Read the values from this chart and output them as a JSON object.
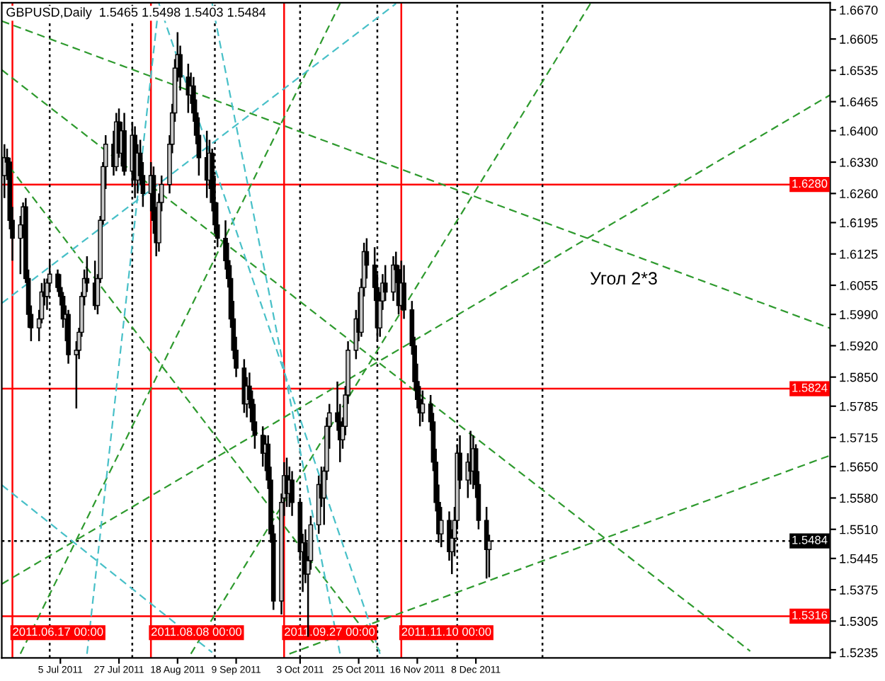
{
  "chart_data": {
    "type": "candlestick",
    "title": "GBPUSD,Daily  1.5465 1.5498 1.5403 1.5484",
    "color": "#000000",
    "x": [
      "2011-06-14",
      "2011-06-15",
      "2011-06-16",
      "2011-06-17",
      "2011-06-20",
      "2011-06-21",
      "2011-06-22",
      "2011-06-23",
      "2011-06-24",
      "2011-06-27",
      "2011-06-28",
      "2011-06-29",
      "2011-06-30",
      "2011-07-01",
      "2011-07-04",
      "2011-07-05",
      "2011-07-06",
      "2011-07-07",
      "2011-07-08",
      "2011-07-11",
      "2011-07-12",
      "2011-07-13",
      "2011-07-14",
      "2011-07-15",
      "2011-07-18",
      "2011-07-19",
      "2011-07-20",
      "2011-07-21",
      "2011-07-22",
      "2011-07-25",
      "2011-07-26",
      "2011-07-27",
      "2011-07-28",
      "2011-07-29",
      "2011-08-01",
      "2011-08-02",
      "2011-08-03",
      "2011-08-04",
      "2011-08-05",
      "2011-08-08",
      "2011-08-09",
      "2011-08-10",
      "2011-08-11",
      "2011-08-12",
      "2011-08-15",
      "2011-08-16",
      "2011-08-17",
      "2011-08-18",
      "2011-08-19",
      "2011-08-22",
      "2011-08-23",
      "2011-08-24",
      "2011-08-25",
      "2011-08-26",
      "2011-08-29",
      "2011-08-30",
      "2011-08-31",
      "2011-09-01",
      "2011-09-02",
      "2011-09-05",
      "2011-09-06",
      "2011-09-07",
      "2011-09-08",
      "2011-09-09",
      "2011-09-12",
      "2011-09-13",
      "2011-09-14",
      "2011-09-15",
      "2011-09-16",
      "2011-09-19",
      "2011-09-20",
      "2011-09-21",
      "2011-09-22",
      "2011-09-23",
      "2011-09-26",
      "2011-09-27",
      "2011-09-28",
      "2011-09-29",
      "2011-09-30",
      "2011-10-03",
      "2011-10-04",
      "2011-10-05",
      "2011-10-06",
      "2011-10-07",
      "2011-10-10",
      "2011-10-11",
      "2011-10-12",
      "2011-10-13",
      "2011-10-14",
      "2011-10-17",
      "2011-10-18",
      "2011-10-19",
      "2011-10-20",
      "2011-10-21",
      "2011-10-24",
      "2011-10-25",
      "2011-10-26",
      "2011-10-27",
      "2011-10-28",
      "2011-10-31",
      "2011-11-01",
      "2011-11-02",
      "2011-11-03",
      "2011-11-04",
      "2011-11-07",
      "2011-11-08",
      "2011-11-09",
      "2011-11-10",
      "2011-11-11",
      "2011-11-14",
      "2011-11-15",
      "2011-11-16",
      "2011-11-17",
      "2011-11-18",
      "2011-11-21",
      "2011-11-22",
      "2011-11-23",
      "2011-11-24",
      "2011-11-25",
      "2011-11-28",
      "2011-11-29",
      "2011-11-30",
      "2011-12-01",
      "2011-12-02",
      "2011-12-05",
      "2011-12-06",
      "2011-12-07",
      "2011-12-08",
      "2011-12-09",
      "2011-12-12",
      "2011-12-13"
    ],
    "ohlc": [
      [
        1.63,
        1.637,
        1.625,
        1.634
      ],
      [
        1.634,
        1.636,
        1.629,
        1.633
      ],
      [
        1.633,
        1.634,
        1.618,
        1.62
      ],
      [
        1.62,
        1.623,
        1.611,
        1.616
      ],
      [
        1.616,
        1.621,
        1.608,
        1.619
      ],
      [
        1.619,
        1.624,
        1.616,
        1.623
      ],
      [
        1.623,
        1.625,
        1.606,
        1.607
      ],
      [
        1.607,
        1.609,
        1.596,
        1.599
      ],
      [
        1.599,
        1.601,
        1.593,
        1.596
      ],
      [
        1.596,
        1.6,
        1.593,
        1.598
      ],
      [
        1.598,
        1.606,
        1.597,
        1.604
      ],
      [
        1.604,
        1.607,
        1.601,
        1.603
      ],
      [
        1.603,
        1.607,
        1.6,
        1.606
      ],
      [
        1.606,
        1.611,
        1.604,
        1.608
      ],
      [
        1.608,
        1.609,
        1.604,
        1.605
      ],
      [
        1.605,
        1.608,
        1.601,
        1.603
      ],
      [
        1.603,
        1.604,
        1.596,
        1.598
      ],
      [
        1.598,
        1.601,
        1.593,
        1.599
      ],
      [
        1.599,
        1.6,
        1.588,
        1.59
      ],
      [
        1.59,
        1.593,
        1.578,
        1.591
      ],
      [
        1.591,
        1.596,
        1.589,
        1.595
      ],
      [
        1.595,
        1.604,
        1.594,
        1.603
      ],
      [
        1.603,
        1.609,
        1.601,
        1.607
      ],
      [
        1.607,
        1.612,
        1.604,
        1.606
      ],
      [
        1.606,
        1.611,
        1.6,
        1.601
      ],
      [
        1.601,
        1.608,
        1.599,
        1.607
      ],
      [
        1.607,
        1.621,
        1.606,
        1.62
      ],
      [
        1.62,
        1.633,
        1.619,
        1.632
      ],
      [
        1.632,
        1.639,
        1.627,
        1.637
      ],
      [
        1.637,
        1.64,
        1.63,
        1.632
      ],
      [
        1.632,
        1.644,
        1.631,
        1.642
      ],
      [
        1.642,
        1.645,
        1.634,
        1.635
      ],
      [
        1.635,
        1.642,
        1.632,
        1.64
      ],
      [
        1.64,
        1.644,
        1.63,
        1.631
      ],
      [
        1.631,
        1.642,
        1.628,
        1.639
      ],
      [
        1.639,
        1.641,
        1.625,
        1.629
      ],
      [
        1.629,
        1.637,
        1.626,
        1.635
      ],
      [
        1.635,
        1.638,
        1.628,
        1.63
      ],
      [
        1.63,
        1.633,
        1.623,
        1.626
      ],
      [
        1.626,
        1.633,
        1.622,
        1.63
      ],
      [
        1.63,
        1.632,
        1.617,
        1.62
      ],
      [
        1.62,
        1.623,
        1.612,
        1.615
      ],
      [
        1.615,
        1.626,
        1.613,
        1.624
      ],
      [
        1.624,
        1.63,
        1.622,
        1.628
      ],
      [
        1.628,
        1.639,
        1.626,
        1.637
      ],
      [
        1.637,
        1.646,
        1.635,
        1.644
      ],
      [
        1.644,
        1.656,
        1.642,
        1.654
      ],
      [
        1.654,
        1.662,
        1.651,
        1.657
      ],
      [
        1.657,
        1.659,
        1.649,
        1.652
      ],
      [
        1.652,
        1.655,
        1.644,
        1.648
      ],
      [
        1.648,
        1.653,
        1.646,
        1.65
      ],
      [
        1.65,
        1.652,
        1.642,
        1.644
      ],
      [
        1.644,
        1.647,
        1.637,
        1.639
      ],
      [
        1.639,
        1.643,
        1.63,
        1.634
      ],
      [
        1.634,
        1.64,
        1.625,
        1.629
      ],
      [
        1.629,
        1.638,
        1.627,
        1.635
      ],
      [
        1.635,
        1.636,
        1.622,
        1.624
      ],
      [
        1.624,
        1.63,
        1.617,
        1.619
      ],
      [
        1.619,
        1.624,
        1.614,
        1.616
      ],
      [
        1.616,
        1.62,
        1.609,
        1.611
      ],
      [
        1.611,
        1.615,
        1.605,
        1.607
      ],
      [
        1.607,
        1.61,
        1.596,
        1.598
      ],
      [
        1.598,
        1.602,
        1.589,
        1.591
      ],
      [
        1.591,
        1.594,
        1.585,
        1.587
      ],
      [
        1.587,
        1.589,
        1.577,
        1.579
      ],
      [
        1.579,
        1.585,
        1.576,
        1.583
      ],
      [
        1.583,
        1.586,
        1.578,
        1.58
      ],
      [
        1.58,
        1.582,
        1.573,
        1.575
      ],
      [
        1.575,
        1.579,
        1.569,
        1.572
      ],
      [
        1.572,
        1.574,
        1.565,
        1.568
      ],
      [
        1.568,
        1.572,
        1.564,
        1.57
      ],
      [
        1.57,
        1.572,
        1.56,
        1.562
      ],
      [
        1.562,
        1.565,
        1.548,
        1.55
      ],
      [
        1.55,
        1.552,
        1.533,
        1.535
      ],
      [
        1.535,
        1.559,
        1.532,
        1.557
      ],
      [
        1.558,
        1.566,
        1.554,
        1.563
      ],
      [
        1.563,
        1.567,
        1.556,
        1.559
      ],
      [
        1.559,
        1.565,
        1.556,
        1.562
      ],
      [
        1.562,
        1.564,
        1.554,
        1.557
      ],
      [
        1.557,
        1.558,
        1.544,
        1.546
      ],
      [
        1.546,
        1.55,
        1.537,
        1.548
      ],
      [
        1.548,
        1.551,
        1.539,
        1.541
      ],
      [
        1.541,
        1.545,
        1.527,
        1.544
      ],
      [
        1.544,
        1.554,
        1.542,
        1.552
      ],
      [
        1.552,
        1.563,
        1.55,
        1.561
      ],
      [
        1.561,
        1.565,
        1.556,
        1.558
      ],
      [
        1.558,
        1.565,
        1.552,
        1.564
      ],
      [
        1.564,
        1.576,
        1.562,
        1.574
      ],
      [
        1.574,
        1.579,
        1.569,
        1.577
      ],
      [
        1.577,
        1.584,
        1.573,
        1.575
      ],
      [
        1.575,
        1.579,
        1.566,
        1.571
      ],
      [
        1.571,
        1.576,
        1.569,
        1.574
      ],
      [
        1.574,
        1.583,
        1.572,
        1.581
      ],
      [
        1.581,
        1.593,
        1.579,
        1.591
      ],
      [
        1.591,
        1.6,
        1.589,
        1.598
      ],
      [
        1.598,
        1.604,
        1.593,
        1.595
      ],
      [
        1.595,
        1.607,
        1.594,
        1.605
      ],
      [
        1.605,
        1.615,
        1.603,
        1.613
      ],
      [
        1.613,
        1.616,
        1.607,
        1.61
      ],
      [
        1.61,
        1.614,
        1.602,
        1.605
      ],
      [
        1.605,
        1.608,
        1.593,
        1.596
      ],
      [
        1.596,
        1.604,
        1.594,
        1.602
      ],
      [
        1.602,
        1.608,
        1.6,
        1.606
      ],
      [
        1.606,
        1.61,
        1.602,
        1.604
      ],
      [
        1.604,
        1.612,
        1.602,
        1.61
      ],
      [
        1.61,
        1.613,
        1.606,
        1.609
      ],
      [
        1.609,
        1.61,
        1.599,
        1.601
      ],
      [
        1.601,
        1.611,
        1.6,
        1.606
      ],
      [
        1.606,
        1.61,
        1.598,
        1.6
      ],
      [
        1.6,
        1.602,
        1.59,
        1.592
      ],
      [
        1.592,
        1.594,
        1.582,
        1.584
      ],
      [
        1.584,
        1.588,
        1.578,
        1.58
      ],
      [
        1.58,
        1.583,
        1.574,
        1.577
      ],
      [
        1.577,
        1.582,
        1.575,
        1.579
      ],
      [
        1.579,
        1.581,
        1.573,
        1.575
      ],
      [
        1.575,
        1.577,
        1.564,
        1.566
      ],
      [
        1.566,
        1.569,
        1.555,
        1.557
      ],
      [
        1.557,
        1.561,
        1.548,
        1.55
      ],
      [
        1.55,
        1.556,
        1.547,
        1.553
      ],
      [
        1.553,
        1.555,
        1.544,
        1.546
      ],
      [
        1.546,
        1.551,
        1.541,
        1.549
      ],
      [
        1.549,
        1.556,
        1.545,
        1.553
      ],
      [
        1.553,
        1.57,
        1.551,
        1.568
      ],
      [
        1.568,
        1.572,
        1.56,
        1.562
      ],
      [
        1.562,
        1.568,
        1.558,
        1.566
      ],
      [
        1.566,
        1.573,
        1.561,
        1.564
      ],
      [
        1.564,
        1.572,
        1.56,
        1.569
      ],
      [
        1.569,
        1.57,
        1.558,
        1.561
      ],
      [
        1.561,
        1.564,
        1.551,
        1.553
      ],
      [
        1.553,
        1.556,
        1.54,
        1.5465
      ],
      [
        1.5465,
        1.5498,
        1.5403,
        1.5484
      ]
    ],
    "xlim": [
      "2011-06-13",
      "2012-04-19"
    ],
    "xticks": [
      {
        "value": "2011-07-05",
        "label": "5 Jul 2011"
      },
      {
        "value": "2011-07-27",
        "label": "27 Jul 2011"
      },
      {
        "value": "2011-08-18",
        "label": "18 Aug 2011"
      },
      {
        "value": "2011-09-09",
        "label": "9 Sep 2011"
      },
      {
        "value": "2011-10-03",
        "label": "3 Oct 2011"
      },
      {
        "value": "2011-10-25",
        "label": "25 Oct 2011"
      },
      {
        "value": "2011-11-16",
        "label": "16 Nov 2011"
      },
      {
        "value": "2011-12-08",
        "label": "8 Dec 2011"
      }
    ],
    "ylim": [
      1.5223,
      1.6686
    ],
    "yticks": [
      {
        "value": 1.667,
        "label": "1.6670"
      },
      {
        "value": 1.6605,
        "label": "1.6605"
      },
      {
        "value": 1.6535,
        "label": "1.6535"
      },
      {
        "value": 1.6465,
        "label": "1.6465"
      },
      {
        "value": 1.64,
        "label": "1.6400"
      },
      {
        "value": 1.633,
        "label": "1.6330"
      },
      {
        "value": 1.626,
        "label": "1.6260"
      },
      {
        "value": 1.6195,
        "label": "1.6195"
      },
      {
        "value": 1.6125,
        "label": "1.6125"
      },
      {
        "value": 1.6055,
        "label": "1.6055"
      },
      {
        "value": 1.599,
        "label": "1.5990"
      },
      {
        "value": 1.592,
        "label": "1.5920"
      },
      {
        "value": 1.585,
        "label": "1.5850"
      },
      {
        "value": 1.5785,
        "label": "1.5785"
      },
      {
        "value": 1.5715,
        "label": "1.5715"
      },
      {
        "value": 1.565,
        "label": "1.5650"
      },
      {
        "value": 1.558,
        "label": "1.5580"
      },
      {
        "value": 1.551,
        "label": "1.5510"
      },
      {
        "value": 1.5445,
        "label": "1.5445"
      },
      {
        "value": 1.5375,
        "label": "1.5375"
      },
      {
        "value": 1.5305,
        "label": "1.5305"
      },
      {
        "value": 1.5235,
        "label": "1.5235"
      }
    ],
    "ref_lines": [
      {
        "axis": "y",
        "value": 1.628,
        "label": "1.6280",
        "color": "#ff0000",
        "line_style": "solid"
      },
      {
        "axis": "y",
        "value": 1.5824,
        "label": "1.5824",
        "color": "#ff0000",
        "line_style": "solid"
      },
      {
        "axis": "y",
        "value": 1.5316,
        "label": "1.5316",
        "color": "#ff0000",
        "line_style": "solid"
      },
      {
        "axis": "y",
        "value": 1.5484,
        "label": "1.5484",
        "color": "#000000",
        "line_style": "dotted"
      },
      {
        "axis": "x",
        "value": "2011-06-17",
        "label": "2011.06.17 00:00",
        "color": "#ff0000",
        "line_style": "solid"
      },
      {
        "axis": "x",
        "value": "2011-08-08",
        "label": "2011.08.08 00:00",
        "color": "#ff0000",
        "line_style": "solid"
      },
      {
        "axis": "x",
        "value": "2011-09-27",
        "label": "2011.09.27 00:00",
        "color": "#ff0000",
        "line_style": "solid"
      },
      {
        "axis": "x",
        "value": "2011-11-10",
        "label": "2011.11.10 00:00",
        "color": "#ff0000",
        "line_style": "solid"
      },
      {
        "axis": "x",
        "value": "2011-07-01",
        "color": "#000000",
        "line_style": "dotted"
      },
      {
        "axis": "x",
        "value": "2011-08-01",
        "color": "#000000",
        "line_style": "dotted"
      },
      {
        "axis": "x",
        "value": "2011-09-01",
        "color": "#000000",
        "line_style": "dotted"
      },
      {
        "axis": "x",
        "value": "2011-10-03",
        "color": "#000000",
        "line_style": "dotted"
      },
      {
        "axis": "x",
        "value": "2011-11-01",
        "color": "#000000",
        "line_style": "dotted"
      },
      {
        "axis": "x",
        "value": "2011-12-01",
        "color": "#000000",
        "line_style": "dotted"
      },
      {
        "axis": "x",
        "value": "2012-01-02",
        "color": "#000000",
        "line_style": "dotted"
      }
    ],
    "series": [
      {
        "type": "line",
        "color": "#2e9a2e",
        "line_style": "dashed",
        "x": [
          "2011-06-13",
          "2012-04-19"
        ],
        "values": [
          1.6645,
          1.5959
        ]
      },
      {
        "type": "line",
        "color": "#2e9a2e",
        "line_style": "dashed",
        "x": [
          "2011-06-13",
          "2012-03-20"
        ],
        "values": [
          1.6536,
          1.5238
        ]
      },
      {
        "type": "line",
        "color": "#2e9a2e",
        "line_style": "dashed",
        "x": [
          "2011-06-13",
          "2011-11-02"
        ],
        "values": [
          1.6342,
          1.5238
        ]
      },
      {
        "type": "line",
        "color": "#2e9a2e",
        "line_style": "dashed",
        "x": [
          "2011-09-29",
          "2012-04-19"
        ],
        "values": [
          1.5232,
          1.5675
        ]
      },
      {
        "type": "line",
        "color": "#2e9a2e",
        "line_style": "dashed",
        "x": [
          "2011-08-23",
          "2012-01-20"
        ],
        "values": [
          1.5232,
          1.6684
        ]
      },
      {
        "type": "line",
        "color": "#2e9a2e",
        "line_style": "dashed",
        "x": [
          "2011-06-20",
          "2011-10-18"
        ],
        "values": [
          1.5232,
          1.6684
        ]
      },
      {
        "type": "line",
        "color": "#2e9a2e",
        "line_style": "dashed",
        "x": [
          "2011-06-13",
          "2012-04-19"
        ],
        "values": [
          1.5388,
          1.648
        ]
      },
      {
        "type": "line",
        "color": "#48c0c8",
        "line_style": "dashed",
        "x": [
          "2011-06-13",
          "2011-11-08"
        ],
        "values": [
          1.6015,
          1.6684
        ]
      },
      {
        "type": "line",
        "color": "#48c0c8",
        "line_style": "dashed",
        "x": [
          "2011-08-11",
          "2011-11-02"
        ],
        "values": [
          1.6684,
          1.5232
        ]
      },
      {
        "type": "line",
        "color": "#48c0c8",
        "line_style": "dashed",
        "x": [
          "2011-08-31",
          "2011-10-18"
        ],
        "values": [
          1.6684,
          1.5232
        ]
      },
      {
        "type": "line",
        "color": "#48c0c8",
        "line_style": "dashed",
        "x": [
          "2011-06-13",
          "2011-08-31"
        ],
        "values": [
          1.5609,
          1.5235
        ]
      },
      {
        "type": "line",
        "color": "#48c0c8",
        "line_style": "dashed",
        "x": [
          "2011-07-15",
          "2011-08-11"
        ],
        "values": [
          1.5232,
          1.6684
        ]
      }
    ],
    "annotations": [
      "Угол 2*3"
    ]
  }
}
